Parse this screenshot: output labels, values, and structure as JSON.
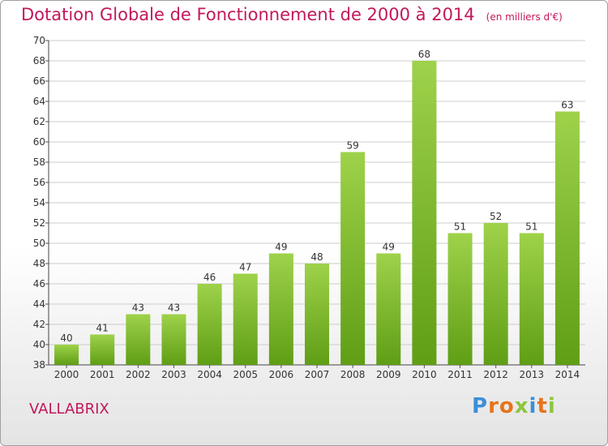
{
  "header": {
    "title": "Dotation Globale de Fonctionnement de 2000 à 2014",
    "unit": "(en milliers d'€)"
  },
  "footer": {
    "place": "VALLABRIX",
    "logo": [
      "P",
      "r",
      "o",
      "x",
      "i",
      "t",
      "i"
    ]
  },
  "colors": {
    "title": "#c2185b",
    "bar_top": "#9ed24a",
    "bar_bottom": "#5f9e15",
    "grid": "#cccccc",
    "logo": [
      "#3b8fd8",
      "#e8731c",
      "#e8731c",
      "#8cc63f",
      "#3b8fd8",
      "#e8731c",
      "#8cc63f"
    ]
  },
  "chart_data": {
    "type": "bar",
    "title": "Dotation Globale de Fonctionnement de 2000 à 2014",
    "subtitle": "(en milliers d'€)",
    "xlabel": "",
    "ylabel": "",
    "categories": [
      "2000",
      "2001",
      "2002",
      "2003",
      "2004",
      "2005",
      "2006",
      "2007",
      "2008",
      "2009",
      "2010",
      "2011",
      "2012",
      "2013",
      "2014"
    ],
    "values": [
      40,
      41,
      43,
      43,
      46,
      47,
      49,
      48,
      59,
      49,
      68,
      51,
      52,
      51,
      63
    ],
    "ylim": [
      38,
      70
    ],
    "yticks": [
      "38",
      "40",
      "42",
      "44",
      "46",
      "48",
      "50",
      "52",
      "54",
      "56",
      "58",
      "60",
      "62",
      "64",
      "66",
      "68",
      "70"
    ],
    "grid": true,
    "legend": "none"
  }
}
